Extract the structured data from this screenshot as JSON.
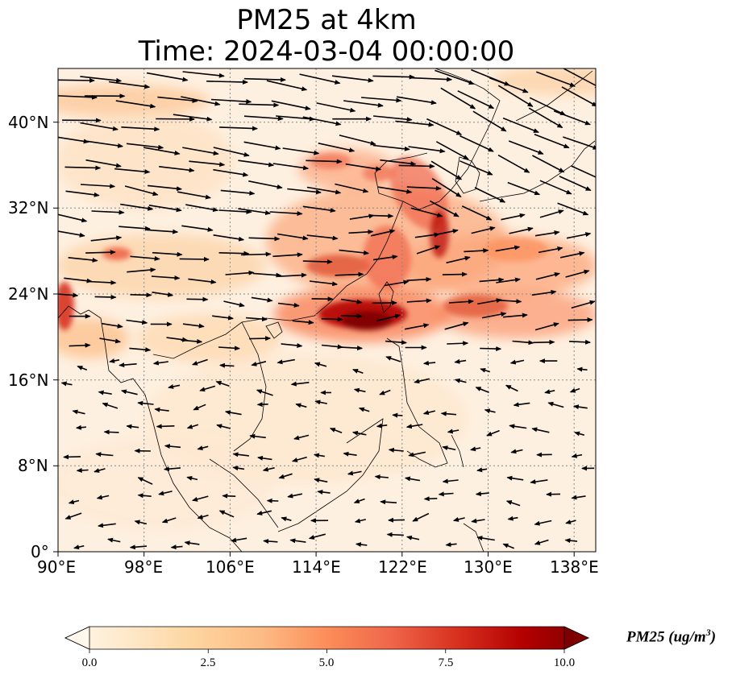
{
  "title": {
    "line1": "PM25 at 4km",
    "line2": "Time: 2024-03-04 00:00:00"
  },
  "map": {
    "lon_range": [
      90,
      140
    ],
    "lat_range": [
      0,
      45
    ],
    "lon_ticks": [
      {
        "value": 90,
        "label": "90°E"
      },
      {
        "value": 98,
        "label": "98°E"
      },
      {
        "value": 106,
        "label": "106°E"
      },
      {
        "value": 114,
        "label": "114°E"
      },
      {
        "value": 122,
        "label": "122°E"
      },
      {
        "value": 130,
        "label": "130°E"
      },
      {
        "value": 138,
        "label": "138°E"
      }
    ],
    "lat_ticks": [
      {
        "value": 0,
        "label": "0°"
      },
      {
        "value": 8,
        "label": "8°N"
      },
      {
        "value": 16,
        "label": "16°N"
      },
      {
        "value": 24,
        "label": "24°N"
      },
      {
        "value": 32,
        "label": "32°N"
      },
      {
        "value": 40,
        "label": "40°N"
      }
    ],
    "gridlines": true,
    "field": "PM25 concentration",
    "overlay": "wind vectors"
  },
  "colorbar": {
    "label": "PM25 (ug/m",
    "label_exp": "3",
    "label_close": ")",
    "ticks": [
      "0.0",
      "2.5",
      "5.0",
      "7.5",
      "10.0"
    ],
    "min": 0,
    "max": 10,
    "extend": "both",
    "colormap": "OrRd",
    "colors": [
      "#fff7ec",
      "#fee8c8",
      "#fdd49e",
      "#fdbb84",
      "#fc8d59",
      "#ef6548",
      "#d7301f",
      "#b30000",
      "#7f0000"
    ]
  }
}
